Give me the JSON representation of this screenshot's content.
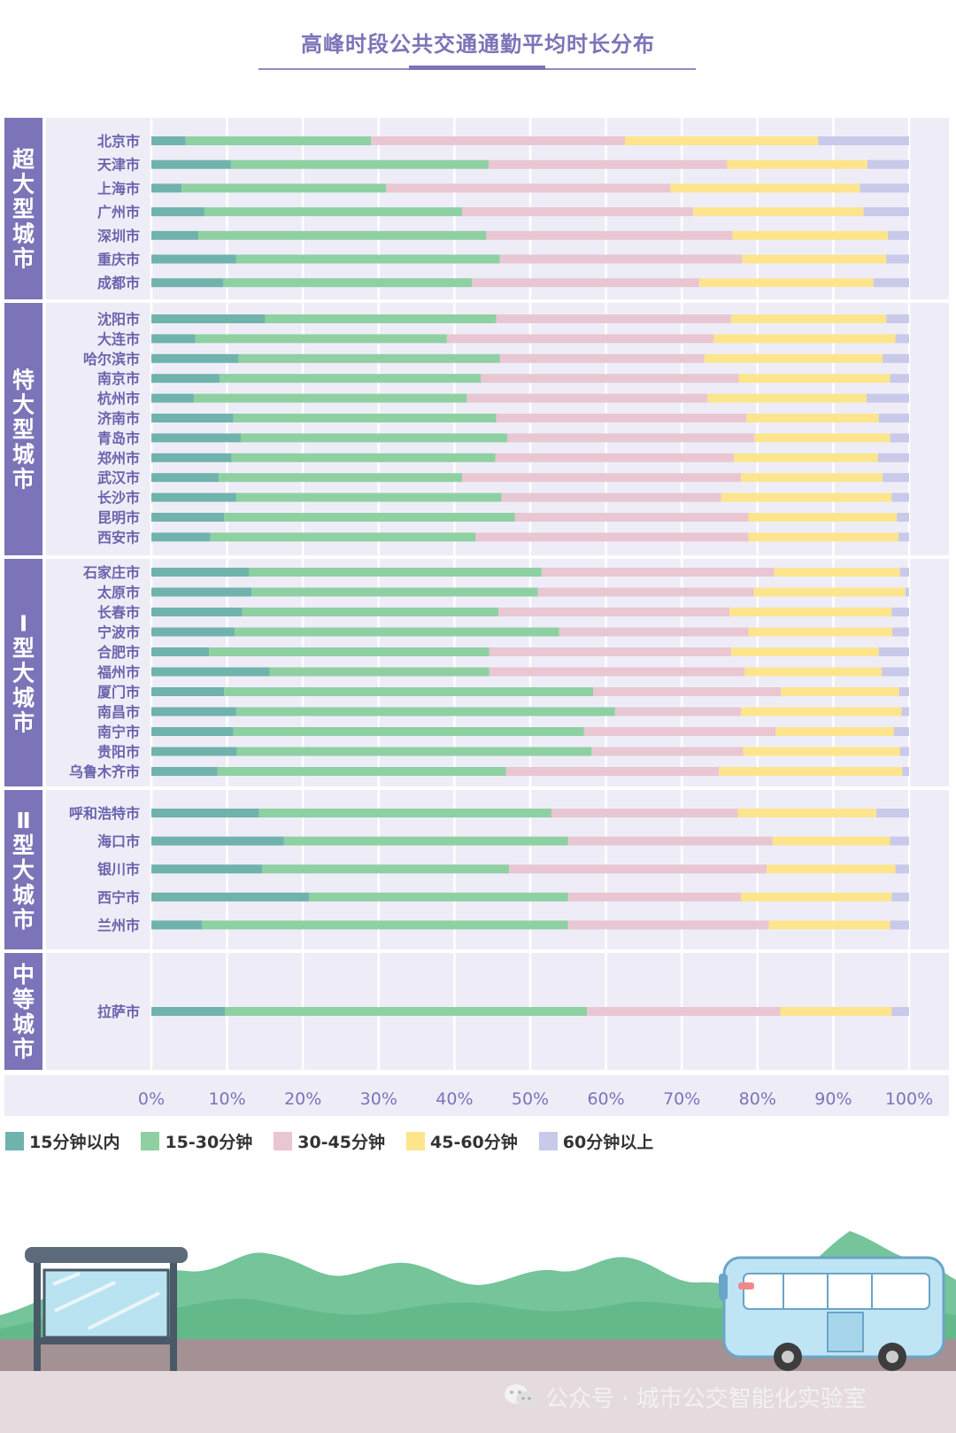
{
  "title": "高峰时段公共交通通勤平均时长分布",
  "colors": {
    "series": [
      "#6fb3ac",
      "#8fd0a3",
      "#e8c7d3",
      "#fde58e",
      "#c9c9ea"
    ],
    "group_panel": "#7b74b8",
    "band": "#eeedf7",
    "grid": "#ffffff",
    "title": "#7b74b8",
    "labels": "#6a64ad"
  },
  "chart_data": {
    "type": "bar",
    "orientation": "horizontal",
    "stacked": true,
    "xlim": [
      0,
      100
    ],
    "xticks": [
      "0%",
      "10%",
      "20%",
      "30%",
      "40%",
      "50%",
      "60%",
      "70%",
      "80%",
      "90%",
      "100%"
    ],
    "series_names": [
      "15分钟以内",
      "15-30分钟",
      "30-45分钟",
      "45-60分钟",
      "60分钟以上"
    ],
    "groups": [
      {
        "name": "超大型城市",
        "cities": [
          {
            "name": "北京市",
            "values": [
              4.5,
              24.5,
              33.5,
              25.5,
              12.0
            ]
          },
          {
            "name": "天津市",
            "values": [
              10.5,
              34.0,
              31.5,
              18.5,
              5.5
            ]
          },
          {
            "name": "上海市",
            "values": [
              4.0,
              27.0,
              37.5,
              25.0,
              6.5
            ]
          },
          {
            "name": "广州市",
            "values": [
              7.0,
              34.0,
              30.5,
              22.5,
              6.0
            ]
          },
          {
            "name": "深圳市",
            "values": [
              6.2,
              38.0,
              32.5,
              20.5,
              2.8
            ]
          },
          {
            "name": "重庆市",
            "values": [
              11.2,
              34.8,
              32.0,
              19.0,
              3.0
            ]
          },
          {
            "name": "成都市",
            "values": [
              9.5,
              32.8,
              30.0,
              23.0,
              4.7
            ]
          }
        ]
      },
      {
        "name": "特大型城市",
        "cities": [
          {
            "name": "沈阳市",
            "values": [
              15.0,
              30.5,
              31.0,
              20.5,
              3.0
            ]
          },
          {
            "name": "大连市",
            "values": [
              5.8,
              33.2,
              35.2,
              24.0,
              1.8
            ]
          },
          {
            "name": "哈尔滨市",
            "values": [
              11.5,
              34.5,
              27.0,
              23.5,
              3.5
            ]
          },
          {
            "name": "南京市",
            "values": [
              9.0,
              34.5,
              34.0,
              20.0,
              2.5
            ]
          },
          {
            "name": "杭州市",
            "values": [
              5.6,
              36.0,
              31.8,
              21.0,
              5.6
            ]
          },
          {
            "name": "济南市",
            "values": [
              10.8,
              34.7,
              33.0,
              17.5,
              4.0
            ]
          },
          {
            "name": "青岛市",
            "values": [
              11.8,
              35.2,
              32.6,
              17.9,
              2.5
            ]
          },
          {
            "name": "郑州市",
            "values": [
              10.6,
              34.8,
              31.5,
              19.0,
              4.1
            ]
          },
          {
            "name": "武汉市",
            "values": [
              8.9,
              32.1,
              36.8,
              18.7,
              3.5
            ]
          },
          {
            "name": "长沙市",
            "values": [
              11.2,
              35.0,
              29.0,
              22.5,
              2.3
            ]
          },
          {
            "name": "昆明市",
            "values": [
              9.6,
              38.4,
              30.8,
              19.6,
              1.6
            ]
          },
          {
            "name": "西安市",
            "values": [
              7.8,
              35.0,
              36.0,
              19.8,
              1.4
            ]
          }
        ]
      },
      {
        "name": "Ⅰ型大城市",
        "cities": [
          {
            "name": "石家庄市",
            "values": [
              12.9,
              38.6,
              30.7,
              16.6,
              1.2
            ]
          },
          {
            "name": "太原市",
            "values": [
              13.2,
              37.8,
              28.5,
              20.0,
              0.5
            ]
          },
          {
            "name": "长春市",
            "values": [
              12.0,
              33.8,
              30.5,
              21.4,
              2.3
            ]
          },
          {
            "name": "宁波市",
            "values": [
              11.0,
              42.8,
              25.0,
              19.0,
              2.2
            ]
          },
          {
            "name": "合肥市",
            "values": [
              7.6,
              37.0,
              31.9,
              19.5,
              4.0
            ]
          },
          {
            "name": "福州市",
            "values": [
              15.6,
              29.0,
              33.7,
              18.1,
              3.6
            ]
          },
          {
            "name": "厦门市",
            "values": [
              9.6,
              48.7,
              24.8,
              15.6,
              1.3
            ]
          },
          {
            "name": "南昌市",
            "values": [
              11.2,
              50.0,
              16.6,
              21.2,
              1.0
            ]
          },
          {
            "name": "南宁市",
            "values": [
              10.8,
              46.3,
              25.3,
              15.6,
              2.0
            ]
          },
          {
            "name": "贵阳市",
            "values": [
              11.3,
              46.8,
              20.0,
              20.7,
              1.2
            ]
          },
          {
            "name": "乌鲁木齐市",
            "values": [
              8.7,
              38.1,
              28.1,
              24.2,
              0.9
            ]
          }
        ]
      },
      {
        "name": "Ⅱ型大城市",
        "cities": [
          {
            "name": "呼和浩特市",
            "values": [
              14.2,
              38.6,
              24.6,
              18.3,
              4.3
            ]
          },
          {
            "name": "海口市",
            "values": [
              17.5,
              37.5,
              27.0,
              15.5,
              2.5
            ]
          },
          {
            "name": "银川市",
            "values": [
              14.6,
              32.6,
              34.0,
              17.0,
              1.8
            ]
          },
          {
            "name": "西宁市",
            "values": [
              20.8,
              34.2,
              22.8,
              19.9,
              2.3
            ]
          },
          {
            "name": "兰州市",
            "values": [
              6.7,
              48.3,
              26.5,
              16.0,
              2.5
            ]
          }
        ]
      },
      {
        "name": "中等城市",
        "cities": [
          {
            "name": "拉萨市",
            "values": [
              9.7,
              47.8,
              25.5,
              14.7,
              2.3
            ]
          }
        ]
      }
    ]
  },
  "watermark": {
    "icon": "wechat-icon",
    "text": "公众号 · 城市公交智能化实验室"
  },
  "scenery": {
    "bus_stop": "bus-stop-shelter",
    "bus": "city-bus",
    "background": "green-hills"
  }
}
